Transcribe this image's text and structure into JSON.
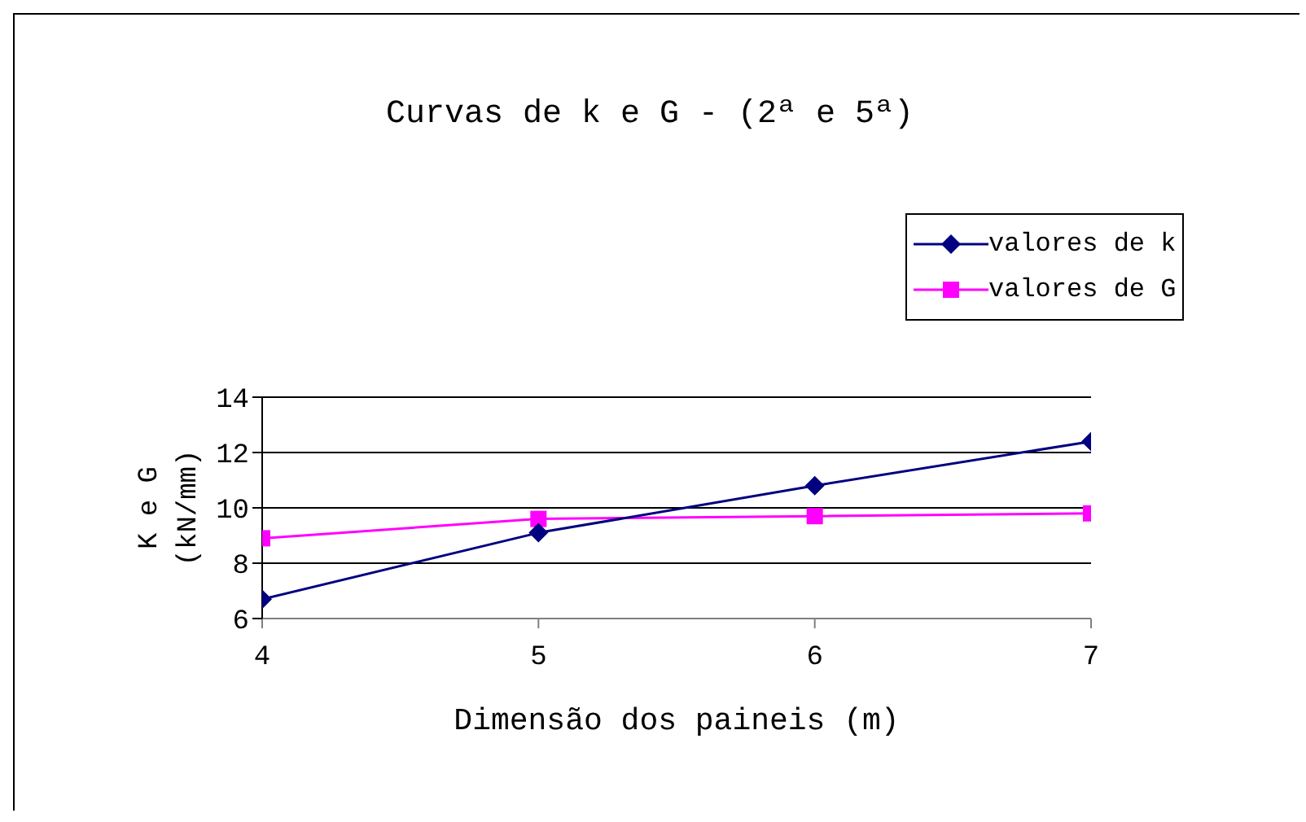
{
  "chart_data": {
    "type": "line",
    "title": "Curvas de k e G - (2ª e 5ª)",
    "xlabel": "Dimensão dos paineis (m)",
    "ylabel": "K e G\n(kN/mm)",
    "x": [
      4,
      5,
      6,
      7
    ],
    "series": [
      {
        "name": "valores de k",
        "color": "#000080",
        "marker": "diamond",
        "values": [
          6.7,
          9.1,
          10.8,
          12.4
        ]
      },
      {
        "name": "valores de G",
        "color": "#ff00ff",
        "marker": "square",
        "values": [
          8.9,
          9.6,
          9.7,
          9.8
        ]
      }
    ],
    "xlim": [
      4,
      7
    ],
    "xticks": [
      4,
      5,
      6,
      7
    ],
    "ylim": [
      6,
      14
    ],
    "yticks": [
      6,
      8,
      10,
      12,
      14
    ],
    "grid": "y",
    "legend": "top right"
  }
}
